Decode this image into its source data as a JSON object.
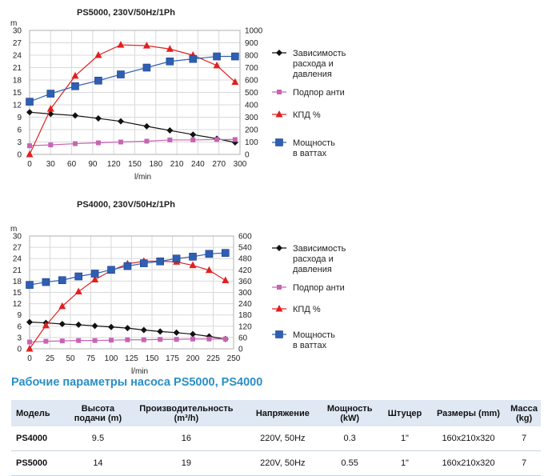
{
  "chart_data": [
    {
      "type": "line",
      "title": "PS5000, 230V/50Hz/1Ph",
      "xlabel": "l/min",
      "ylabel_left": "m",
      "x_ticks": [
        0,
        30,
        60,
        90,
        120,
        150,
        180,
        210,
        240,
        270,
        300
      ],
      "xlim": [
        0,
        300
      ],
      "y_left_ticks": [
        0,
        3,
        6,
        9,
        12,
        15,
        18,
        21,
        24,
        27,
        30
      ],
      "ylim_left": [
        0,
        30
      ],
      "y_right_ticks": [
        0,
        100,
        200,
        300,
        400,
        500,
        600,
        700,
        800,
        900,
        1000
      ],
      "ylim_right": [
        0,
        1000
      ],
      "grid": true,
      "legend_position": "right",
      "series": [
        {
          "name": "Зависимость расхода и давления",
          "axis": "left",
          "color": "#111111",
          "marker": "diamond",
          "x": [
            0,
            30,
            65,
            98,
            130,
            167,
            200,
            233,
            267,
            293
          ],
          "y": [
            10.2,
            9.8,
            9.4,
            8.7,
            8.0,
            6.8,
            5.8,
            4.8,
            3.8,
            2.9
          ]
        },
        {
          "name": "Подпор анти",
          "axis": "left",
          "color": "#c864b4",
          "marker": "square-small",
          "x": [
            0,
            30,
            65,
            98,
            130,
            167,
            200,
            233,
            267,
            293
          ],
          "y": [
            2.1,
            2.3,
            2.6,
            2.8,
            3.0,
            3.2,
            3.5,
            3.5,
            3.6,
            3.6
          ]
        },
        {
          "name": "КПД %",
          "axis": "left",
          "color": "#e02020",
          "marker": "triangle",
          "x": [
            0,
            30,
            65,
            98,
            130,
            167,
            200,
            233,
            267,
            293
          ],
          "y": [
            0,
            11,
            19,
            24,
            26.5,
            26.3,
            25.5,
            24,
            21.5,
            17.5
          ]
        },
        {
          "name": "Мощность в ваттах",
          "axis": "right",
          "color": "#2e5fb4",
          "marker": "square",
          "x": [
            0,
            30,
            65,
            98,
            130,
            167,
            200,
            233,
            267,
            293
          ],
          "y": [
            425,
            490,
            550,
            595,
            645,
            700,
            750,
            770,
            790,
            790
          ]
        }
      ],
      "legend": [
        "Зависимость расхода и давления",
        "Подпор анти",
        "КПД %",
        "Мощность в ваттах"
      ]
    },
    {
      "type": "line",
      "title": "PS4000, 230V/50Hz/1Ph",
      "xlabel": "l/min",
      "ylabel_left": "m",
      "x_ticks": [
        0,
        25,
        50,
        75,
        100,
        125,
        150,
        175,
        200,
        225,
        250
      ],
      "xlim": [
        0,
        250
      ],
      "y_left_ticks": [
        0,
        3,
        6,
        9,
        12,
        15,
        18,
        21,
        24,
        27,
        30
      ],
      "ylim_left": [
        0,
        30
      ],
      "y_right_ticks": [
        0,
        60,
        120,
        180,
        240,
        300,
        360,
        420,
        480,
        540,
        600
      ],
      "ylim_right": [
        0,
        600
      ],
      "grid": true,
      "legend_position": "right",
      "series": [
        {
          "name": "Зависимость расхода и давления",
          "axis": "left",
          "color": "#111111",
          "marker": "diamond",
          "x": [
            0,
            20,
            40,
            60,
            80,
            100,
            120,
            140,
            160,
            180,
            200,
            220,
            240
          ],
          "y": [
            7.1,
            6.9,
            6.6,
            6.4,
            6.1,
            5.8,
            5.5,
            5.0,
            4.6,
            4.3,
            3.9,
            3.3,
            2.6
          ]
        },
        {
          "name": "Подпор анти",
          "axis": "left",
          "color": "#c864b4",
          "marker": "square-small",
          "x": [
            0,
            20,
            40,
            60,
            80,
            100,
            120,
            140,
            160,
            180,
            200,
            220,
            240
          ],
          "y": [
            1.8,
            2.0,
            2.1,
            2.2,
            2.2,
            2.3,
            2.4,
            2.4,
            2.5,
            2.5,
            2.6,
            2.6,
            2.6
          ]
        },
        {
          "name": "КПД %",
          "axis": "left",
          "color": "#e02020",
          "marker": "triangle",
          "x": [
            0,
            20,
            40,
            60,
            80,
            100,
            120,
            140,
            160,
            180,
            200,
            220,
            240
          ],
          "y": [
            0,
            6.2,
            11.3,
            15.2,
            18.4,
            20.8,
            22.6,
            23.3,
            23.3,
            23.1,
            22.2,
            20.9,
            18.2
          ]
        },
        {
          "name": "Мощность в ваттах",
          "axis": "right",
          "color": "#2e5fb4",
          "marker": "square",
          "x": [
            0,
            20,
            40,
            60,
            80,
            100,
            120,
            140,
            160,
            180,
            200,
            220,
            240
          ],
          "y": [
            340,
            355,
            365,
            385,
            400,
            420,
            440,
            455,
            465,
            480,
            490,
            505,
            510
          ]
        }
      ],
      "legend": [
        "Зависимость расхода и давления",
        "Подпор анти",
        "КПД %",
        "Мощность в ваттах"
      ]
    }
  ],
  "colors": {
    "section_title": "#2a8fc5",
    "table_header_bg": "#dfe8f3",
    "grid": "#d9d9d9"
  },
  "section_title": "Рабочие параметры насоса PS5000, PS4000",
  "table": {
    "headers": [
      "Модель",
      "Высота подачи (m)",
      "Производительность (m³/h)",
      "Напряжение",
      "Мощность (kW)",
      "Штуцер",
      "Размеры (mm)",
      "Масса (kg)"
    ],
    "rows": [
      [
        "PS4000",
        "9.5",
        "16",
        "220V, 50Hz",
        "0.3",
        "1\"",
        "160x210x320",
        "7"
      ],
      [
        "PS5000",
        "14",
        "19",
        "220V, 50Hz",
        "0.55",
        "1\"",
        "160x210x320",
        "7"
      ]
    ]
  }
}
